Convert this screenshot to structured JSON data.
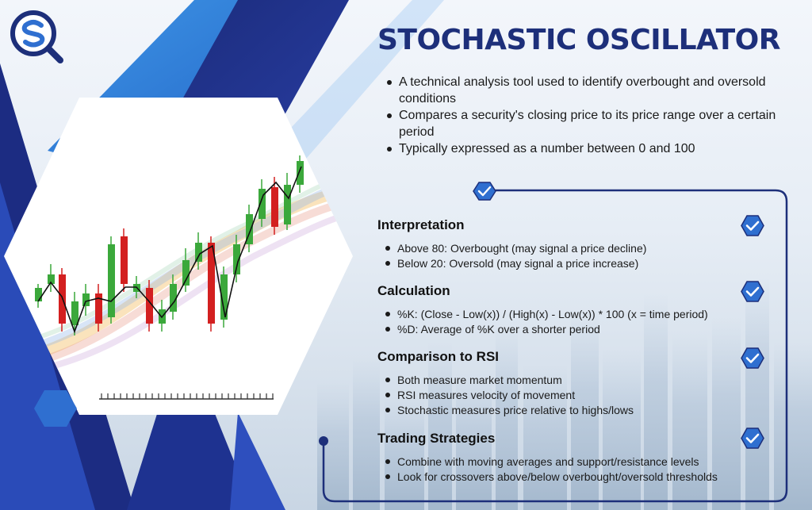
{
  "title": "STOCHASTIC OSCILLATOR",
  "intro_points": [
    "A technical analysis tool used to identify overbought and oversold conditions",
    "Compares a security's closing price to its price range over a certain period",
    "Typically expressed as a number between 0 and 100"
  ],
  "sections": [
    {
      "heading": "Interpretation",
      "points": [
        "Above 80: Overbought (may signal a price decline)",
        "Below 20: Oversold (may signal a price increase)"
      ]
    },
    {
      "heading": "Calculation",
      "points": [
        "%K: (Close - Low(x)) / (High(x) - Low(x)) * 100 (x = time period)",
        "%D: Average of %K over a shorter period"
      ]
    },
    {
      "heading": "Comparison to RSI",
      "points": [
        "Both measure market momentum",
        "RSI measures velocity of movement",
        "Stochastic measures price relative to highs/lows"
      ]
    },
    {
      "heading": "Trading Strategies",
      "points": [
        "Combine with moving averages and support/resistance levels",
        "Look for crossovers above/below overbought/oversold thresholds"
      ]
    }
  ],
  "colors": {
    "navy": "#1d2f7a",
    "royal_blue": "#2343a8",
    "sky_blue": "#3d8ee0",
    "check_blue": "#2f6fd0",
    "candle_green": "#3ba83b",
    "candle_red": "#d32020"
  },
  "icons": {
    "logo": "sq-magnifier-logo",
    "check": "check-hexagon-icon"
  }
}
